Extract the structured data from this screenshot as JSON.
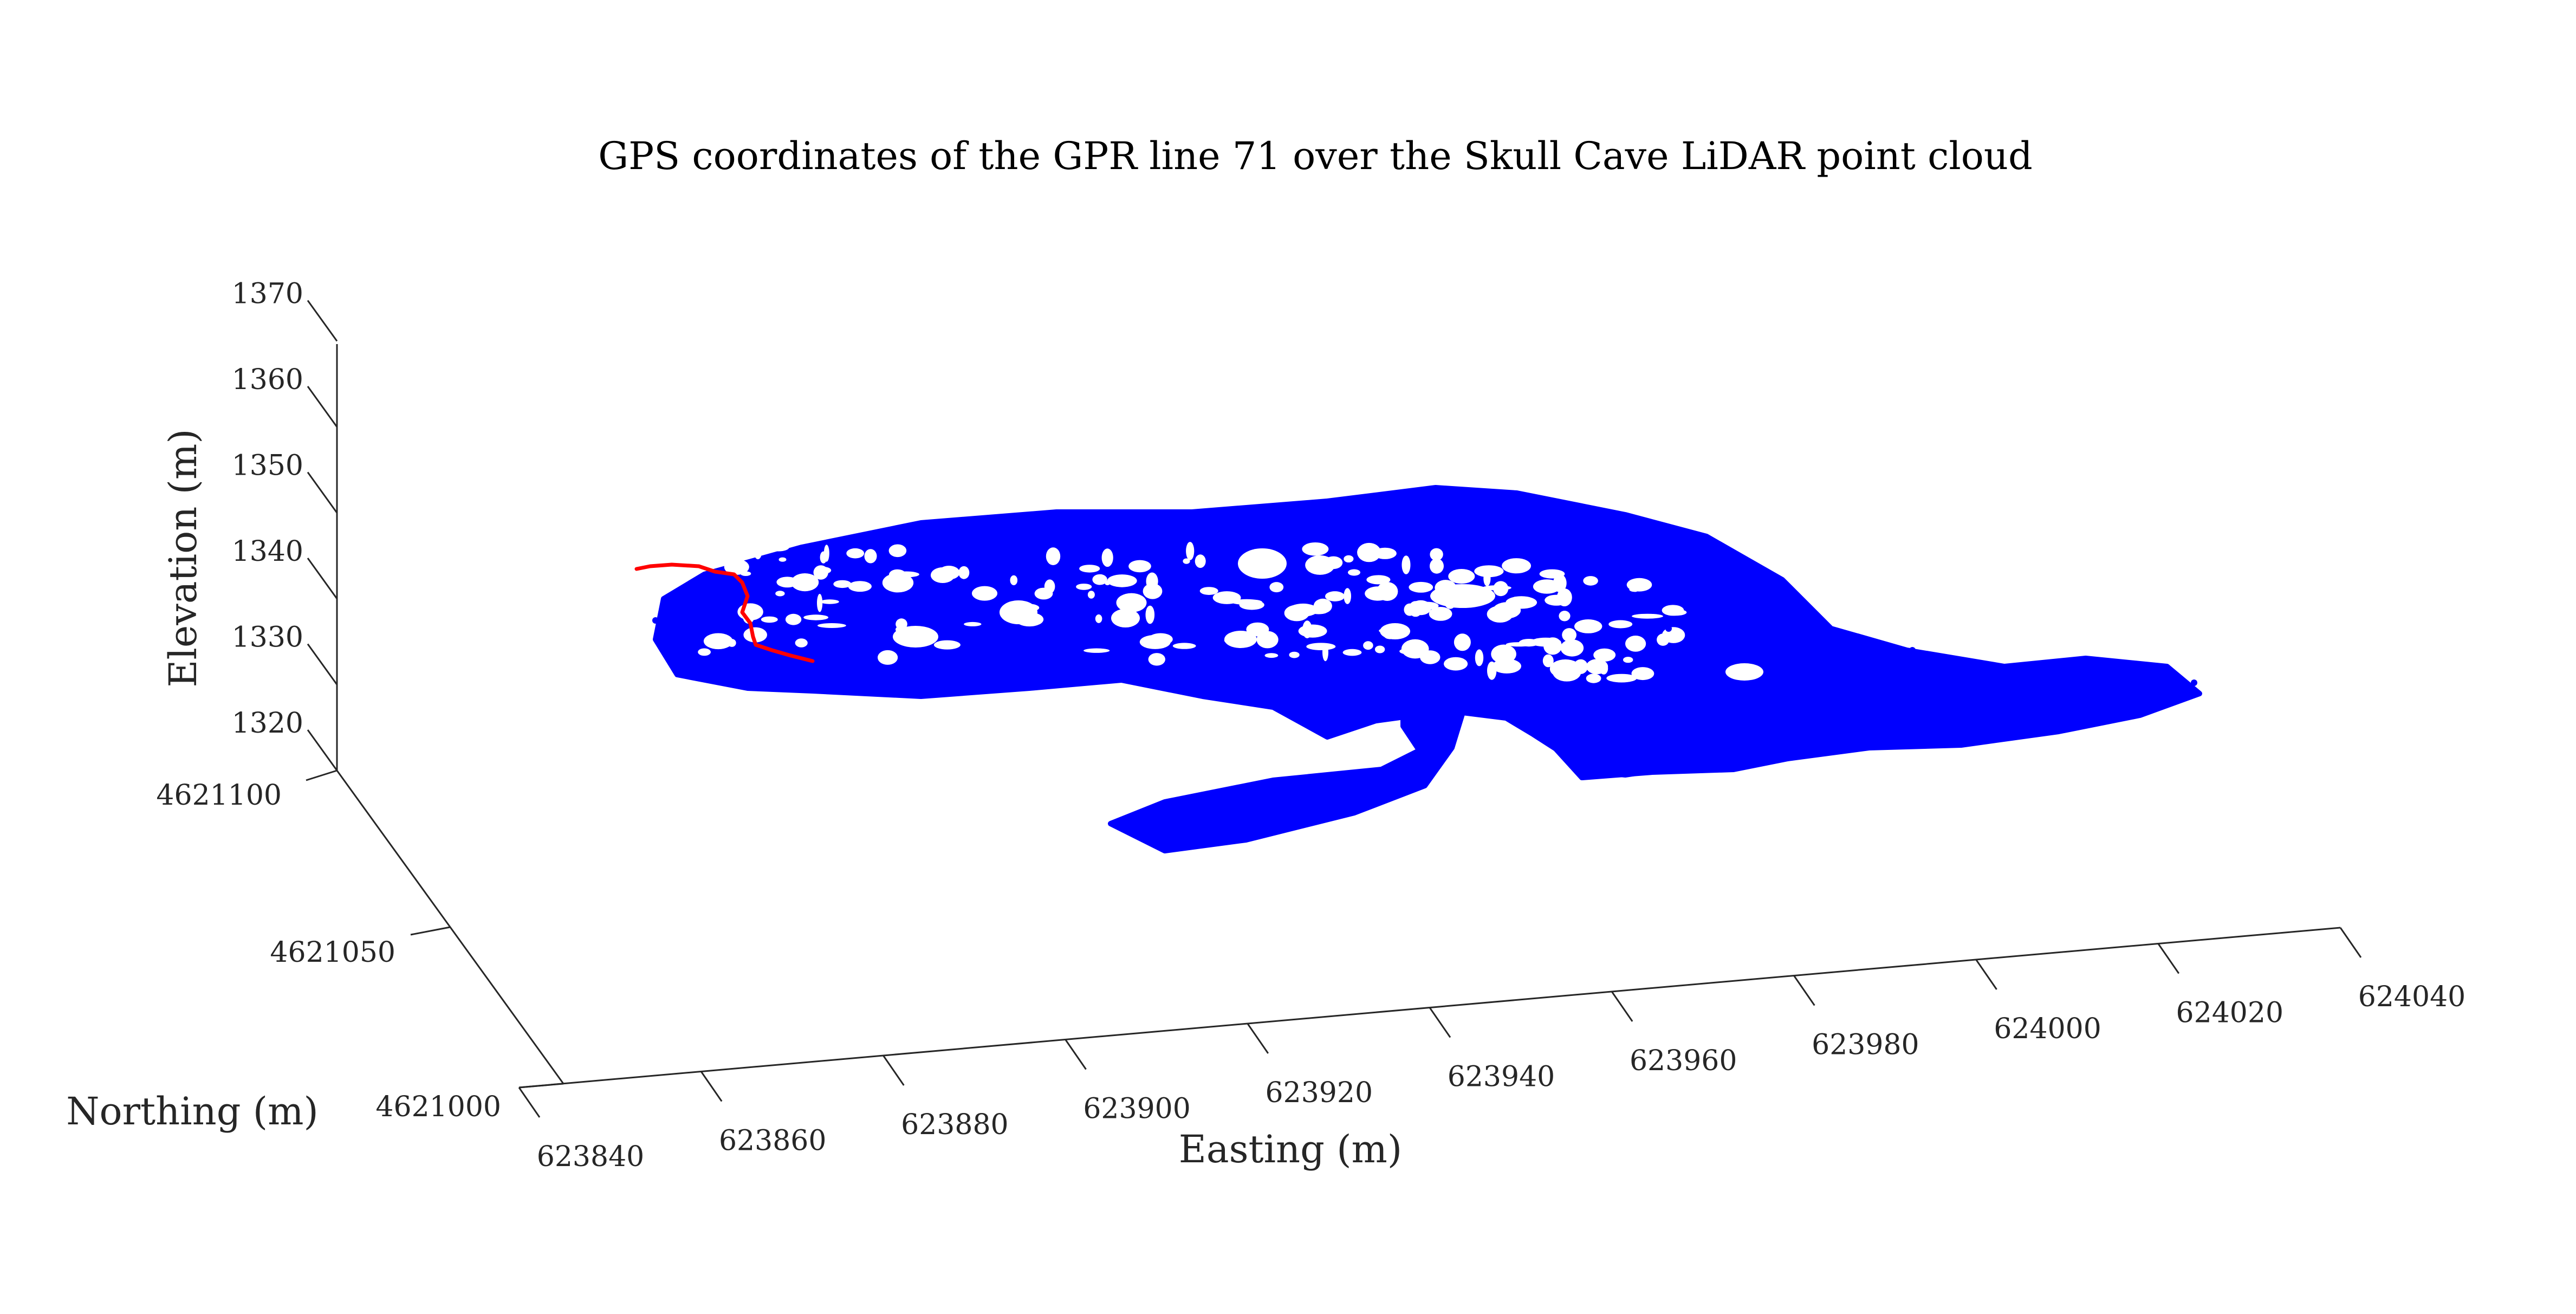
{
  "chart_data": {
    "type": "scatter",
    "projection": "3d",
    "title": "GPS coordinates of the GPR line 71 over the Skull Cave LiDAR point cloud",
    "xlabel": "Easting (m)",
    "ylabel": "Northing (m)",
    "zlabel": "Elevation (m)",
    "xlim": [
      623840,
      624040
    ],
    "ylim": [
      4621000,
      4621100
    ],
    "zlim": [
      1320,
      1370
    ],
    "x_ticks": [
      "623840",
      "623860",
      "623880",
      "623900",
      "623920",
      "623940",
      "623960",
      "623980",
      "624000",
      "624020",
      "624040"
    ],
    "y_ticks": [
      "4621000",
      "4621050",
      "4621100"
    ],
    "z_ticks": [
      "1320",
      "1330",
      "1340",
      "1350",
      "1360",
      "1370"
    ],
    "grid": false,
    "series": [
      {
        "kind": "point-cloud",
        "color": "#0000ff",
        "markers": "dense points",
        "outline": [
          [
            1225,
            1105
          ],
          [
            1300,
            1060
          ],
          [
            1480,
            1010
          ],
          [
            1700,
            965
          ],
          [
            1950,
            945
          ],
          [
            2200,
            945
          ],
          [
            2450,
            925
          ],
          [
            2650,
            900
          ],
          [
            2800,
            910
          ],
          [
            3000,
            950
          ],
          [
            3150,
            990
          ],
          [
            3290,
            1070
          ],
          [
            3380,
            1160
          ],
          [
            3520,
            1200
          ],
          [
            3700,
            1230
          ],
          [
            3850,
            1215
          ],
          [
            4000,
            1230
          ],
          [
            4060,
            1280
          ],
          [
            3950,
            1320
          ],
          [
            3800,
            1350
          ],
          [
            3620,
            1375
          ],
          [
            3450,
            1380
          ],
          [
            3300,
            1400
          ],
          [
            3200,
            1420
          ],
          [
            3050,
            1425
          ],
          [
            2920,
            1435
          ],
          [
            2870,
            1380
          ],
          [
            2820,
            1330
          ],
          [
            2750,
            1310
          ],
          [
            2650,
            1315
          ],
          [
            2540,
            1330
          ],
          [
            2450,
            1360
          ],
          [
            2350,
            1305
          ],
          [
            2220,
            1285
          ],
          [
            2070,
            1255
          ],
          [
            1900,
            1270
          ],
          [
            1700,
            1285
          ],
          [
            1500,
            1275
          ],
          [
            1380,
            1270
          ],
          [
            1250,
            1245
          ],
          [
            1210,
            1180
          ]
        ],
        "branch": [
          [
            2590,
            1330
          ],
          [
            2660,
            1300
          ],
          [
            2760,
            1290
          ],
          [
            2840,
            1320
          ],
          [
            2880,
            1360
          ],
          [
            2930,
            1390
          ],
          [
            2970,
            1405
          ],
          [
            3020,
            1390
          ],
          [
            3150,
            1380
          ],
          [
            3250,
            1350
          ],
          [
            3285,
            1310
          ],
          [
            3260,
            1370
          ],
          [
            3200,
            1400
          ],
          [
            3100,
            1415
          ],
          [
            3000,
            1430
          ],
          [
            2950,
            1425
          ],
          [
            2900,
            1400
          ],
          [
            2830,
            1355
          ],
          [
            2780,
            1325
          ],
          [
            2700,
            1315
          ],
          [
            2680,
            1380
          ],
          [
            2630,
            1450
          ],
          [
            2500,
            1500
          ],
          [
            2300,
            1550
          ],
          [
            2150,
            1570
          ],
          [
            2050,
            1520
          ],
          [
            2150,
            1480
          ],
          [
            2350,
            1440
          ],
          [
            2550,
            1420
          ],
          [
            2620,
            1385
          ],
          [
            2590,
            1340
          ]
        ]
      },
      {
        "kind": "line",
        "color": "#ff0000",
        "path": [
          [
            1175,
            1050
          ],
          [
            1200,
            1045
          ],
          [
            1240,
            1042
          ],
          [
            1290,
            1045
          ],
          [
            1320,
            1055
          ],
          [
            1355,
            1060
          ],
          [
            1370,
            1075
          ],
          [
            1380,
            1100
          ],
          [
            1370,
            1130
          ],
          [
            1385,
            1150
          ],
          [
            1390,
            1175
          ],
          [
            1395,
            1190
          ],
          [
            1425,
            1200
          ],
          [
            1460,
            1210
          ],
          [
            1500,
            1220
          ]
        ]
      }
    ]
  }
}
